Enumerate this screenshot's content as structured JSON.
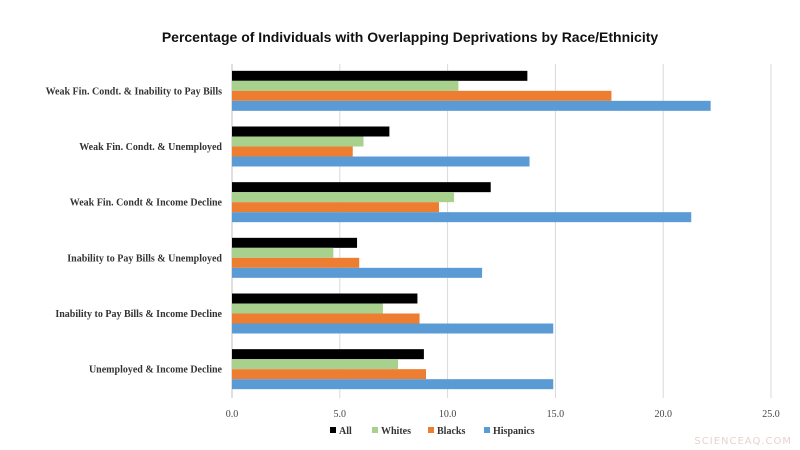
{
  "chart_data": {
    "type": "bar",
    "orientation": "horizontal",
    "title": "Percentage of Individuals with Overlapping Deprivations by Race/Ethnicity",
    "categories": [
      "Weak Fin. Condt. & Inability to Pay Bills",
      "Weak Fin. Condt. & Unemployed",
      "Weak Fin. Condt & Income Decline",
      "Inability to Pay Bills & Unemployed",
      "Inability to Pay Bills & Income Decline",
      "Unemployed & Income Decline"
    ],
    "series": [
      {
        "name": "All",
        "color": "#000000",
        "values": [
          13.7,
          7.3,
          12.0,
          5.8,
          8.6,
          8.9
        ]
      },
      {
        "name": "Whites",
        "color": "#a9d18e",
        "values": [
          10.5,
          6.1,
          10.3,
          4.7,
          7.0,
          7.7
        ]
      },
      {
        "name": "Blacks",
        "color": "#ed7d31",
        "values": [
          17.6,
          5.6,
          9.6,
          5.9,
          8.7,
          9.0
        ]
      },
      {
        "name": "Hispanics",
        "color": "#5b9bd5",
        "values": [
          22.2,
          13.8,
          21.3,
          11.6,
          14.9,
          14.9
        ]
      }
    ],
    "xlim": [
      0,
      25
    ],
    "xticks": [
      "0.0",
      "5.0",
      "10.0",
      "15.0",
      "20.0",
      "25.0"
    ],
    "xlabel": "",
    "ylabel": "",
    "grid": true,
    "legend_position": "bottom"
  },
  "watermark": "SCIENCEAQ.COM"
}
